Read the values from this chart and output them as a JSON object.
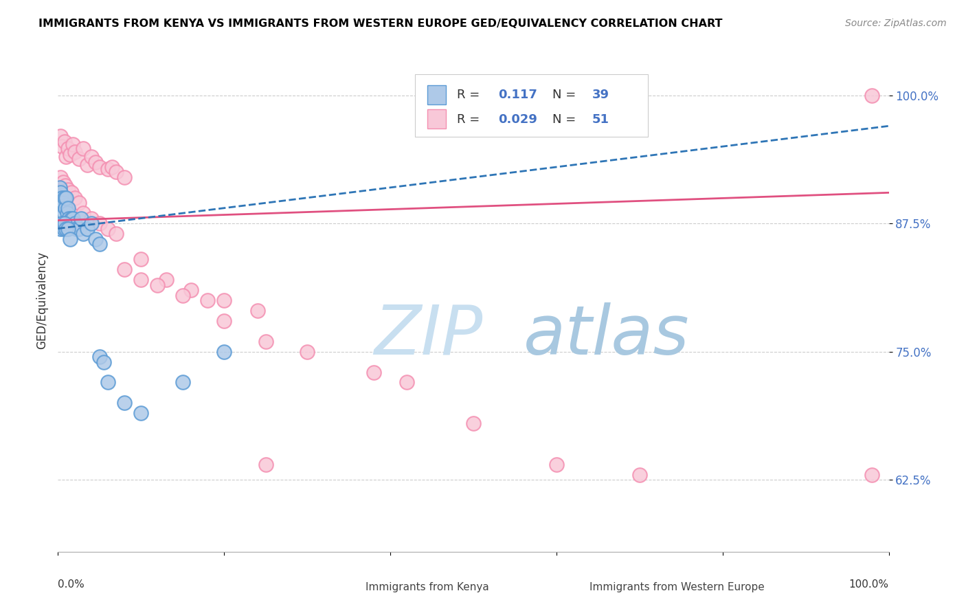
{
  "title": "IMMIGRANTS FROM KENYA VS IMMIGRANTS FROM WESTERN EUROPE GED/EQUIVALENCY CORRELATION CHART",
  "source": "Source: ZipAtlas.com",
  "ylabel": "GED/Equivalency",
  "xlim": [
    0.0,
    1.0
  ],
  "ylim": [
    0.555,
    1.045
  ],
  "ytick_vals": [
    0.625,
    0.75,
    0.875,
    1.0
  ],
  "ytick_labels": [
    "62.5%",
    "75.0%",
    "87.5%",
    "100.0%"
  ],
  "kenya_color_edge": "#5b9bd5",
  "kenya_color_fill": "#aec9e8",
  "west_color_edge": "#f48fb1",
  "west_color_fill": "#f8c8d8",
  "kenya_trend_color": "#2e75b6",
  "west_trend_color": "#e05080",
  "watermark_zip_color": "#c5ddf0",
  "watermark_atlas_color": "#a8cfe8",
  "legend_r_kenya": "0.117",
  "legend_n_kenya": "39",
  "legend_r_west": "0.029",
  "legend_n_west": "51",
  "kenya_x": [
    0.002,
    0.003,
    0.004,
    0.005,
    0.006,
    0.007,
    0.008,
    0.009,
    0.01,
    0.011,
    0.012,
    0.013,
    0.014,
    0.015,
    0.016,
    0.018,
    0.02,
    0.022,
    0.025,
    0.028,
    0.03,
    0.035,
    0.04,
    0.045,
    0.05,
    0.003,
    0.005,
    0.007,
    0.008,
    0.01,
    0.012,
    0.015,
    0.05,
    0.055,
    0.06,
    0.08,
    0.1,
    0.15,
    0.2
  ],
  "kenya_y": [
    0.91,
    0.905,
    0.895,
    0.9,
    0.895,
    0.885,
    0.9,
    0.89,
    0.9,
    0.885,
    0.89,
    0.88,
    0.875,
    0.875,
    0.88,
    0.88,
    0.875,
    0.87,
    0.87,
    0.88,
    0.865,
    0.87,
    0.875,
    0.86,
    0.855,
    0.87,
    0.875,
    0.87,
    0.875,
    0.87,
    0.87,
    0.86,
    0.745,
    0.74,
    0.72,
    0.7,
    0.69,
    0.72,
    0.75
  ],
  "west_x": [
    0.003,
    0.005,
    0.008,
    0.01,
    0.012,
    0.015,
    0.018,
    0.02,
    0.025,
    0.03,
    0.035,
    0.04,
    0.045,
    0.05,
    0.06,
    0.065,
    0.07,
    0.08,
    0.003,
    0.006,
    0.009,
    0.012,
    0.016,
    0.02,
    0.025,
    0.03,
    0.04,
    0.05,
    0.06,
    0.07,
    0.1,
    0.13,
    0.16,
    0.2,
    0.24,
    0.08,
    0.1,
    0.12,
    0.15,
    0.18,
    0.2,
    0.25,
    0.3,
    0.38,
    0.42,
    0.5,
    0.6,
    0.7,
    0.98,
    0.98,
    0.25
  ],
  "west_y": [
    0.96,
    0.95,
    0.955,
    0.94,
    0.948,
    0.942,
    0.952,
    0.945,
    0.938,
    0.948,
    0.932,
    0.94,
    0.935,
    0.93,
    0.928,
    0.93,
    0.925,
    0.92,
    0.92,
    0.915,
    0.912,
    0.908,
    0.905,
    0.9,
    0.895,
    0.885,
    0.88,
    0.875,
    0.87,
    0.865,
    0.84,
    0.82,
    0.81,
    0.8,
    0.79,
    0.83,
    0.82,
    0.815,
    0.805,
    0.8,
    0.78,
    0.76,
    0.75,
    0.73,
    0.72,
    0.68,
    0.64,
    0.63,
    1.0,
    0.63,
    0.64
  ],
  "kenya_trend_x0": 0.0,
  "kenya_trend_x1": 1.0,
  "kenya_trend_y0": 0.87,
  "kenya_trend_y1": 0.97,
  "west_trend_x0": 0.0,
  "west_trend_x1": 1.0,
  "west_trend_y0": 0.878,
  "west_trend_y1": 0.905
}
